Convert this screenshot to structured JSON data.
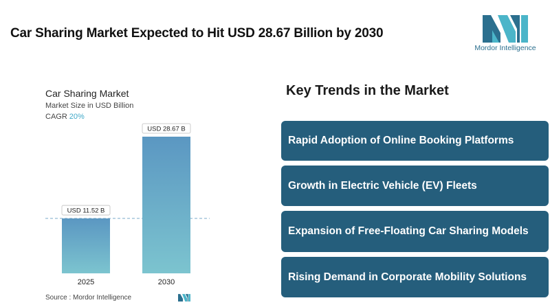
{
  "headline": "Car Sharing Market Expected to Hit USD 28.67 Billion by 2030",
  "logo": {
    "text": "Mordor Intelligence",
    "icon": "mordor-logo-icon",
    "color": "#2b6f8e"
  },
  "chart_data": {
    "type": "bar",
    "title": "Car Sharing Market",
    "subtitle": "Market Size in USD Billion",
    "cagr_label": "CAGR",
    "cagr_value": "20%",
    "categories": [
      "2025",
      "2030"
    ],
    "values": [
      11.52,
      28.67
    ],
    "data_labels": [
      "USD 11.52 B",
      "USD 28.67 B"
    ],
    "ylim": [
      0,
      28.67
    ],
    "grid": false,
    "colors": {
      "bar_top": "#5b97c2",
      "bar_bottom": "#7cc4cf",
      "reference_line": "#7aa9c9"
    }
  },
  "source": "Source :  Mordor Intelligence",
  "key_trends": {
    "title": "Key Trends in the Market",
    "items": [
      "Rapid Adoption of Online Booking Platforms",
      "Growth in Electric Vehicle (EV) Fleets",
      "Expansion of Free-Floating Car Sharing Models",
      "Rising Demand in Corporate Mobility Solutions"
    ],
    "color": "#255e7c"
  }
}
